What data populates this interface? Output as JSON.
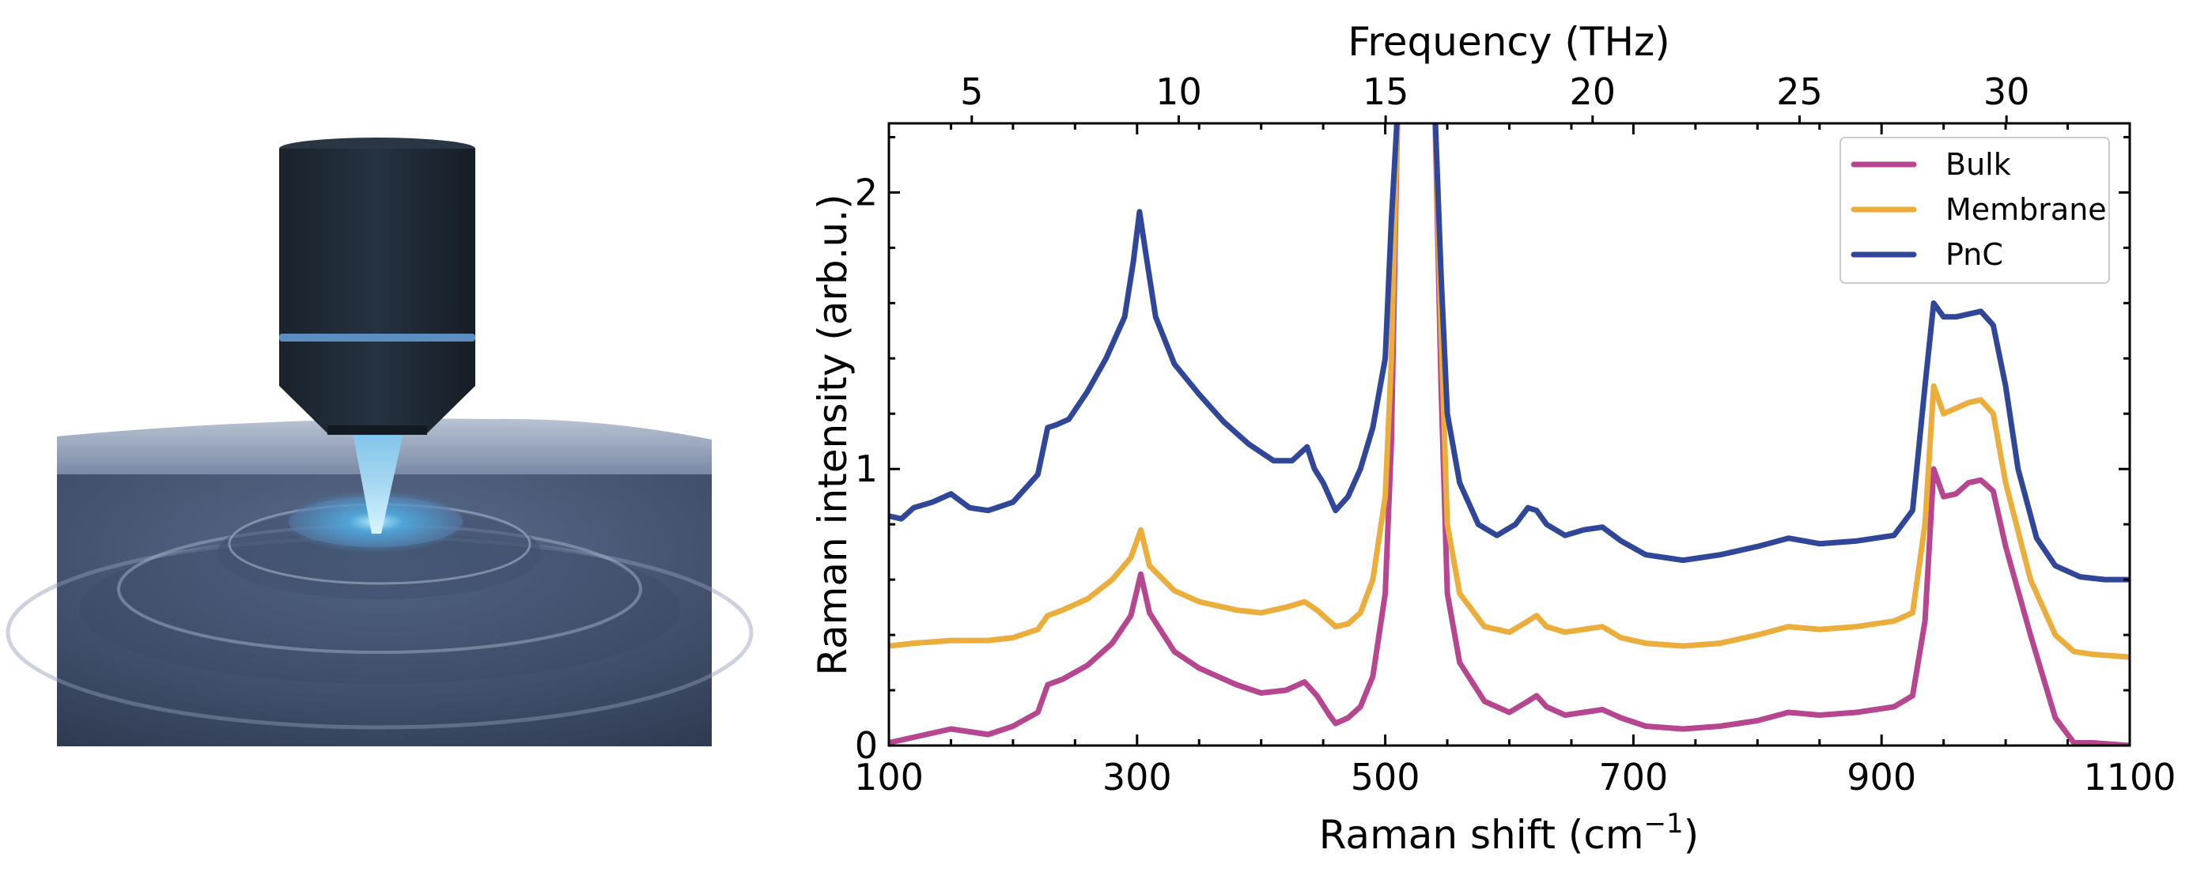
{
  "illustration": {
    "name": "microscope-objective-over-rippled-membrane"
  },
  "chart_data": {
    "type": "line",
    "xlabel": "Raman shift (cm",
    "xlabel_sup": "−1",
    "xlabel_end": ")",
    "x2label": "Frequency (THz)",
    "ylabel": "Raman intensity (arb.u.)",
    "xlim": [
      100,
      1100
    ],
    "ylim": [
      0,
      2.25
    ],
    "x_ticks": [
      100,
      300,
      500,
      700,
      900,
      1100
    ],
    "x_tick_labels": [
      "100",
      "300",
      "500",
      "700",
      "900",
      "1100"
    ],
    "y_ticks": [
      0,
      1,
      2
    ],
    "y_tick_labels": [
      "0",
      "1",
      "2"
    ],
    "x2_ticks_thz": [
      5,
      10,
      15,
      20,
      25,
      30
    ],
    "x2_tick_labels": [
      "5",
      "10",
      "15",
      "20",
      "25",
      "30"
    ],
    "thz_to_cm": 33.356,
    "grid": false,
    "legend_position": "top-right",
    "series": [
      {
        "name": "Bulk",
        "color": "#b5468f",
        "x": [
          100,
          120,
          150,
          180,
          200,
          220,
          228,
          240,
          260,
          280,
          295,
          303,
          310,
          330,
          350,
          380,
          400,
          420,
          435,
          445,
          455,
          460,
          470,
          480,
          490,
          500,
          505,
          510,
          515,
          520,
          530,
          540,
          545,
          550,
          560,
          580,
          600,
          615,
          622,
          630,
          645,
          660,
          675,
          690,
          710,
          740,
          770,
          800,
          825,
          850,
          880,
          910,
          925,
          935,
          942,
          950,
          960,
          970,
          980,
          990,
          1000,
          1020,
          1040,
          1055,
          1070,
          1100
        ],
        "y": [
          0.01,
          0.03,
          0.06,
          0.04,
          0.07,
          0.12,
          0.22,
          0.24,
          0.29,
          0.37,
          0.47,
          0.62,
          0.48,
          0.34,
          0.28,
          0.22,
          0.19,
          0.2,
          0.23,
          0.18,
          0.11,
          0.08,
          0.1,
          0.14,
          0.25,
          0.55,
          1.1,
          2.3,
          2.3,
          2.3,
          2.3,
          2.3,
          1.3,
          0.55,
          0.3,
          0.16,
          0.12,
          0.16,
          0.18,
          0.14,
          0.11,
          0.12,
          0.13,
          0.1,
          0.07,
          0.06,
          0.07,
          0.09,
          0.12,
          0.11,
          0.12,
          0.14,
          0.18,
          0.45,
          1.0,
          0.9,
          0.91,
          0.95,
          0.96,
          0.92,
          0.72,
          0.4,
          0.1,
          0.01,
          0.01,
          0.0
        ]
      },
      {
        "name": "Membrane",
        "color": "#ebad3b",
        "x": [
          100,
          120,
          150,
          180,
          200,
          220,
          228,
          240,
          260,
          280,
          295,
          303,
          310,
          330,
          350,
          380,
          400,
          420,
          435,
          445,
          455,
          460,
          470,
          480,
          490,
          500,
          505,
          510,
          515,
          520,
          530,
          540,
          545,
          550,
          560,
          580,
          600,
          615,
          622,
          630,
          645,
          660,
          675,
          690,
          710,
          740,
          770,
          800,
          825,
          850,
          880,
          910,
          925,
          935,
          942,
          950,
          960,
          970,
          980,
          990,
          1000,
          1020,
          1040,
          1055,
          1070,
          1100
        ],
        "y": [
          0.36,
          0.37,
          0.38,
          0.38,
          0.39,
          0.42,
          0.47,
          0.49,
          0.53,
          0.6,
          0.68,
          0.78,
          0.65,
          0.56,
          0.52,
          0.49,
          0.48,
          0.5,
          0.52,
          0.49,
          0.45,
          0.43,
          0.44,
          0.48,
          0.6,
          0.9,
          1.4,
          2.3,
          2.3,
          2.3,
          2.3,
          2.3,
          1.5,
          0.8,
          0.55,
          0.43,
          0.41,
          0.45,
          0.47,
          0.43,
          0.41,
          0.42,
          0.43,
          0.39,
          0.37,
          0.36,
          0.37,
          0.4,
          0.43,
          0.42,
          0.43,
          0.45,
          0.48,
          0.8,
          1.3,
          1.2,
          1.22,
          1.24,
          1.25,
          1.2,
          0.95,
          0.6,
          0.4,
          0.34,
          0.33,
          0.32
        ]
      },
      {
        "name": "PnC",
        "color": "#2f4699",
        "x": [
          100,
          110,
          120,
          135,
          150,
          165,
          180,
          200,
          220,
          228,
          235,
          245,
          260,
          275,
          290,
          297,
          302,
          307,
          315,
          330,
          350,
          370,
          390,
          410,
          425,
          437,
          443,
          450,
          455,
          460,
          470,
          480,
          490,
          500,
          505,
          510,
          515,
          520,
          530,
          540,
          545,
          550,
          560,
          575,
          590,
          605,
          615,
          622,
          630,
          645,
          660,
          675,
          690,
          710,
          740,
          770,
          800,
          825,
          850,
          880,
          910,
          925,
          935,
          942,
          950,
          960,
          970,
          980,
          990,
          1000,
          1010,
          1025,
          1040,
          1060,
          1080,
          1100
        ],
        "y": [
          0.83,
          0.82,
          0.86,
          0.88,
          0.91,
          0.86,
          0.85,
          0.88,
          0.98,
          1.15,
          1.16,
          1.18,
          1.28,
          1.4,
          1.55,
          1.75,
          1.93,
          1.78,
          1.55,
          1.38,
          1.27,
          1.17,
          1.09,
          1.03,
          1.03,
          1.08,
          1.0,
          0.95,
          0.9,
          0.85,
          0.9,
          1.0,
          1.15,
          1.4,
          1.9,
          2.3,
          2.3,
          2.3,
          2.3,
          2.3,
          1.7,
          1.2,
          0.95,
          0.8,
          0.76,
          0.8,
          0.86,
          0.85,
          0.8,
          0.76,
          0.78,
          0.79,
          0.74,
          0.69,
          0.67,
          0.69,
          0.72,
          0.75,
          0.73,
          0.74,
          0.76,
          0.85,
          1.3,
          1.6,
          1.55,
          1.55,
          1.56,
          1.57,
          1.52,
          1.3,
          1.0,
          0.75,
          0.65,
          0.61,
          0.6,
          0.6
        ]
      }
    ]
  }
}
